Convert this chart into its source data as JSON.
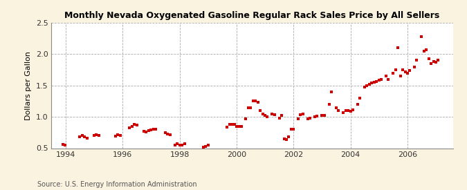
{
  "title": "Monthly Nevada Oxygenated Gasoline Regular Rack Sales Price by All Sellers",
  "ylabel": "Dollars per Gallon",
  "source": "Source: U.S. Energy Information Administration",
  "fig_bg_color": "#faf3e0",
  "plot_bg_color": "#ffffff",
  "marker_color": "#cc0000",
  "grid_color": "#aaaaaa",
  "xlim": [
    1993.5,
    2007.6
  ],
  "ylim": [
    0.5,
    2.5
  ],
  "xticks": [
    1994,
    1996,
    1998,
    2000,
    2002,
    2004,
    2006
  ],
  "yticks": [
    0.5,
    1.0,
    1.5,
    2.0,
    2.5
  ],
  "data": [
    [
      1993.917,
      0.56
    ],
    [
      1993.99,
      0.55
    ],
    [
      1994.5,
      0.68
    ],
    [
      1994.58,
      0.7
    ],
    [
      1994.67,
      0.68
    ],
    [
      1994.75,
      0.66
    ],
    [
      1995.0,
      0.7
    ],
    [
      1995.08,
      0.72
    ],
    [
      1995.17,
      0.7
    ],
    [
      1995.75,
      0.69
    ],
    [
      1995.83,
      0.71
    ],
    [
      1995.92,
      0.7
    ],
    [
      1996.25,
      0.82
    ],
    [
      1996.33,
      0.85
    ],
    [
      1996.42,
      0.88
    ],
    [
      1996.5,
      0.87
    ],
    [
      1996.75,
      0.77
    ],
    [
      1996.83,
      0.76
    ],
    [
      1996.92,
      0.78
    ],
    [
      1997.0,
      0.79
    ],
    [
      1997.08,
      0.8
    ],
    [
      1997.17,
      0.8
    ],
    [
      1997.5,
      0.75
    ],
    [
      1997.58,
      0.73
    ],
    [
      1997.67,
      0.72
    ],
    [
      1997.83,
      0.55
    ],
    [
      1997.92,
      0.57
    ],
    [
      1998.0,
      0.55
    ],
    [
      1998.08,
      0.55
    ],
    [
      1998.17,
      0.57
    ],
    [
      1998.83,
      0.52
    ],
    [
      1998.92,
      0.53
    ],
    [
      1999.0,
      0.55
    ],
    [
      1999.67,
      0.84
    ],
    [
      1999.75,
      0.88
    ],
    [
      1999.83,
      0.88
    ],
    [
      1999.92,
      0.88
    ],
    [
      2000.0,
      0.85
    ],
    [
      2000.08,
      0.85
    ],
    [
      2000.17,
      0.85
    ],
    [
      2000.33,
      0.97
    ],
    [
      2000.42,
      1.15
    ],
    [
      2000.5,
      1.15
    ],
    [
      2000.58,
      1.25
    ],
    [
      2000.67,
      1.25
    ],
    [
      2000.75,
      1.23
    ],
    [
      2000.83,
      1.1
    ],
    [
      2000.92,
      1.05
    ],
    [
      2001.0,
      1.02
    ],
    [
      2001.08,
      1.0
    ],
    [
      2001.25,
      1.05
    ],
    [
      2001.33,
      1.03
    ],
    [
      2001.5,
      0.98
    ],
    [
      2001.58,
      1.02
    ],
    [
      2001.67,
      0.65
    ],
    [
      2001.75,
      0.64
    ],
    [
      2001.83,
      0.68
    ],
    [
      2001.92,
      0.8
    ],
    [
      2002.0,
      0.8
    ],
    [
      2002.17,
      0.97
    ],
    [
      2002.25,
      1.03
    ],
    [
      2002.33,
      1.05
    ],
    [
      2002.5,
      0.97
    ],
    [
      2002.58,
      0.98
    ],
    [
      2002.75,
      1.0
    ],
    [
      2002.83,
      1.01
    ],
    [
      2003.0,
      1.02
    ],
    [
      2003.08,
      1.02
    ],
    [
      2003.25,
      1.2
    ],
    [
      2003.33,
      1.4
    ],
    [
      2003.5,
      1.15
    ],
    [
      2003.58,
      1.1
    ],
    [
      2003.75,
      1.07
    ],
    [
      2003.83,
      1.1
    ],
    [
      2003.92,
      1.1
    ],
    [
      2004.0,
      1.09
    ],
    [
      2004.08,
      1.11
    ],
    [
      2004.25,
      1.2
    ],
    [
      2004.33,
      1.3
    ],
    [
      2004.5,
      1.47
    ],
    [
      2004.58,
      1.5
    ],
    [
      2004.67,
      1.52
    ],
    [
      2004.75,
      1.54
    ],
    [
      2004.83,
      1.55
    ],
    [
      2004.92,
      1.56
    ],
    [
      2005.0,
      1.58
    ],
    [
      2005.08,
      1.6
    ],
    [
      2005.25,
      1.65
    ],
    [
      2005.33,
      1.6
    ],
    [
      2005.5,
      1.7
    ],
    [
      2005.58,
      1.75
    ],
    [
      2005.67,
      2.1
    ],
    [
      2005.75,
      1.65
    ],
    [
      2005.83,
      1.75
    ],
    [
      2005.92,
      1.72
    ],
    [
      2006.0,
      1.7
    ],
    [
      2006.08,
      1.74
    ],
    [
      2006.25,
      1.8
    ],
    [
      2006.33,
      1.9
    ],
    [
      2006.5,
      2.28
    ],
    [
      2006.58,
      2.05
    ],
    [
      2006.67,
      2.07
    ],
    [
      2006.75,
      1.93
    ],
    [
      2006.83,
      1.85
    ],
    [
      2006.92,
      1.88
    ],
    [
      2007.0,
      1.87
    ],
    [
      2007.08,
      1.9
    ]
  ]
}
